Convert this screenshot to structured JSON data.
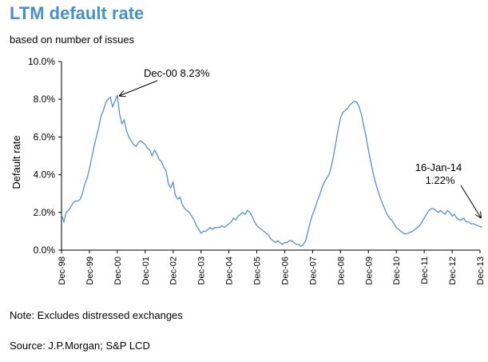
{
  "header": {
    "title": "LTM default rate",
    "subtitle": "based on number of issues"
  },
  "footer": {
    "note": "Note: Excludes distressed exchanges",
    "source": "Source: J.P.Morgan; S&P LCD"
  },
  "colors": {
    "title": "#4a90c8",
    "line": "#5b8fc8",
    "axis": "#000000"
  },
  "chart_data": {
    "type": "line",
    "title": "LTM default rate",
    "subtitle": "based on number of issues",
    "ylabel": "Default rate",
    "xlabel": "",
    "ylim": [
      0,
      10
    ],
    "y_ticks": [
      0,
      2,
      4,
      6,
      8,
      10
    ],
    "y_tick_labels": [
      "0.0%",
      "2.0%",
      "4.0%",
      "6.0%",
      "8.0%",
      "10.0%"
    ],
    "x_tick_labels": [
      "Dec-98",
      "Dec-99",
      "Dec-00",
      "Dec-01",
      "Dec-02",
      "Dec-03",
      "Dec-04",
      "Dec-05",
      "Dec-06",
      "Dec-07",
      "Dec-08",
      "Dec-09",
      "Dec-10",
      "Dec-11",
      "Dec-12",
      "Dec-13"
    ],
    "grid": false,
    "legend": "none",
    "series": [
      {
        "values": [
          [
            "1998-12",
            1.9
          ],
          [
            "1999-01",
            1.5
          ],
          [
            "1999-02",
            2.0
          ],
          [
            "1999-03",
            2.1
          ],
          [
            "1999-04",
            2.3
          ],
          [
            "1999-05",
            2.5
          ],
          [
            "1999-06",
            2.6
          ],
          [
            "1999-07",
            2.6
          ],
          [
            "1999-08",
            2.7
          ],
          [
            "1999-09",
            3.0
          ],
          [
            "1999-10",
            3.5
          ],
          [
            "1999-11",
            3.8
          ],
          [
            "1999-12",
            4.3
          ],
          [
            "2000-01",
            4.9
          ],
          [
            "2000-02",
            5.5
          ],
          [
            "2000-03",
            6.0
          ],
          [
            "2000-04",
            6.5
          ],
          [
            "2000-05",
            7.1
          ],
          [
            "2000-06",
            7.4
          ],
          [
            "2000-07",
            7.8
          ],
          [
            "2000-08",
            8.0
          ],
          [
            "2000-09",
            8.1
          ],
          [
            "2000-10",
            7.6
          ],
          [
            "2000-11",
            7.9
          ],
          [
            "2000-12",
            8.23
          ],
          [
            "2001-01",
            7.2
          ],
          [
            "2001-02",
            6.7
          ],
          [
            "2001-03",
            6.9
          ],
          [
            "2001-04",
            6.3
          ],
          [
            "2001-05",
            6.0
          ],
          [
            "2001-06",
            5.8
          ],
          [
            "2001-07",
            5.6
          ],
          [
            "2001-08",
            5.5
          ],
          [
            "2001-09",
            5.7
          ],
          [
            "2001-10",
            5.8
          ],
          [
            "2001-11",
            5.7
          ],
          [
            "2001-12",
            5.6
          ],
          [
            "2002-01",
            5.4
          ],
          [
            "2002-02",
            5.3
          ],
          [
            "2002-03",
            5.0
          ],
          [
            "2002-04",
            5.3
          ],
          [
            "2002-05",
            5.1
          ],
          [
            "2002-06",
            4.8
          ],
          [
            "2002-07",
            4.7
          ],
          [
            "2002-08",
            4.4
          ],
          [
            "2002-09",
            4.2
          ],
          [
            "2002-10",
            3.5
          ],
          [
            "2002-11",
            3.3
          ],
          [
            "2002-12",
            3.6
          ],
          [
            "2003-01",
            2.9
          ],
          [
            "2003-02",
            2.7
          ],
          [
            "2003-03",
            2.8
          ],
          [
            "2003-04",
            2.4
          ],
          [
            "2003-05",
            2.2
          ],
          [
            "2003-06",
            2.1
          ],
          [
            "2003-07",
            2.0
          ],
          [
            "2003-08",
            1.8
          ],
          [
            "2003-09",
            1.6
          ],
          [
            "2003-10",
            1.3
          ],
          [
            "2003-11",
            1.1
          ],
          [
            "2003-12",
            0.9
          ],
          [
            "2004-01",
            1.0
          ],
          [
            "2004-02",
            1.0
          ],
          [
            "2004-03",
            1.1
          ],
          [
            "2004-04",
            1.2
          ],
          [
            "2004-05",
            1.1
          ],
          [
            "2004-06",
            1.2
          ],
          [
            "2004-07",
            1.2
          ],
          [
            "2004-08",
            1.2
          ],
          [
            "2004-09",
            1.3
          ],
          [
            "2004-10",
            1.2
          ],
          [
            "2004-11",
            1.3
          ],
          [
            "2004-12",
            1.4
          ],
          [
            "2005-01",
            1.5
          ],
          [
            "2005-02",
            1.7
          ],
          [
            "2005-03",
            1.6
          ],
          [
            "2005-04",
            1.8
          ],
          [
            "2005-05",
            1.9
          ],
          [
            "2005-06",
            2.0
          ],
          [
            "2005-07",
            1.9
          ],
          [
            "2005-08",
            2.1
          ],
          [
            "2005-09",
            2.0
          ],
          [
            "2005-10",
            1.8
          ],
          [
            "2005-11",
            1.5
          ],
          [
            "2005-12",
            1.3
          ],
          [
            "2006-01",
            1.2
          ],
          [
            "2006-02",
            1.1
          ],
          [
            "2006-03",
            1.0
          ],
          [
            "2006-04",
            0.9
          ],
          [
            "2006-05",
            0.8
          ],
          [
            "2006-06",
            0.6
          ],
          [
            "2006-07",
            0.5
          ],
          [
            "2006-08",
            0.4
          ],
          [
            "2006-09",
            0.5
          ],
          [
            "2006-10",
            0.4
          ],
          [
            "2006-11",
            0.3
          ],
          [
            "2006-12",
            0.4
          ],
          [
            "2007-01",
            0.4
          ],
          [
            "2007-02",
            0.5
          ],
          [
            "2007-03",
            0.5
          ],
          [
            "2007-04",
            0.4
          ],
          [
            "2007-05",
            0.3
          ],
          [
            "2007-06",
            0.3
          ],
          [
            "2007-07",
            0.2
          ],
          [
            "2007-08",
            0.3
          ],
          [
            "2007-09",
            0.5
          ],
          [
            "2007-10",
            1.0
          ],
          [
            "2007-11",
            1.5
          ],
          [
            "2007-12",
            1.9
          ],
          [
            "2008-01",
            2.2
          ],
          [
            "2008-02",
            2.6
          ],
          [
            "2008-03",
            2.9
          ],
          [
            "2008-04",
            3.3
          ],
          [
            "2008-05",
            3.6
          ],
          [
            "2008-06",
            3.8
          ],
          [
            "2008-07",
            4.0
          ],
          [
            "2008-08",
            4.4
          ],
          [
            "2008-09",
            5.0
          ],
          [
            "2008-10",
            5.7
          ],
          [
            "2008-11",
            6.4
          ],
          [
            "2008-12",
            7.0
          ],
          [
            "2009-01",
            7.3
          ],
          [
            "2009-02",
            7.4
          ],
          [
            "2009-03",
            7.5
          ],
          [
            "2009-04",
            7.7
          ],
          [
            "2009-05",
            7.8
          ],
          [
            "2009-06",
            7.9
          ],
          [
            "2009-07",
            7.85
          ],
          [
            "2009-08",
            7.6
          ],
          [
            "2009-09",
            7.2
          ],
          [
            "2009-10",
            6.6
          ],
          [
            "2009-11",
            6.0
          ],
          [
            "2009-12",
            5.3
          ],
          [
            "2010-01",
            4.7
          ],
          [
            "2010-02",
            4.1
          ],
          [
            "2010-03",
            3.6
          ],
          [
            "2010-04",
            3.2
          ],
          [
            "2010-05",
            2.8
          ],
          [
            "2010-06",
            2.5
          ],
          [
            "2010-07",
            2.2
          ],
          [
            "2010-08",
            1.9
          ],
          [
            "2010-09",
            1.7
          ],
          [
            "2010-10",
            1.6
          ],
          [
            "2010-11",
            1.4
          ],
          [
            "2010-12",
            1.2
          ],
          [
            "2011-01",
            1.1
          ],
          [
            "2011-02",
            1.0
          ],
          [
            "2011-03",
            0.9
          ],
          [
            "2011-04",
            0.85
          ],
          [
            "2011-05",
            0.9
          ],
          [
            "2011-06",
            0.95
          ],
          [
            "2011-07",
            1.0
          ],
          [
            "2011-08",
            1.1
          ],
          [
            "2011-09",
            1.2
          ],
          [
            "2011-10",
            1.3
          ],
          [
            "2011-11",
            1.5
          ],
          [
            "2011-12",
            1.7
          ],
          [
            "2012-01",
            1.9
          ],
          [
            "2012-02",
            2.1
          ],
          [
            "2012-03",
            2.2
          ],
          [
            "2012-04",
            2.2
          ],
          [
            "2012-05",
            2.1
          ],
          [
            "2012-06",
            2.0
          ],
          [
            "2012-07",
            2.1
          ],
          [
            "2012-08",
            2.0
          ],
          [
            "2012-09",
            1.9
          ],
          [
            "2012-10",
            2.1
          ],
          [
            "2012-11",
            2.0
          ],
          [
            "2012-12",
            1.8
          ],
          [
            "2013-01",
            1.9
          ],
          [
            "2013-02",
            1.7
          ],
          [
            "2013-03",
            1.6
          ],
          [
            "2013-04",
            1.6
          ],
          [
            "2013-05",
            1.7
          ],
          [
            "2013-06",
            1.5
          ],
          [
            "2013-07",
            1.5
          ],
          [
            "2013-08",
            1.4
          ],
          [
            "2013-09",
            1.4
          ],
          [
            "2013-10",
            1.35
          ],
          [
            "2013-11",
            1.3
          ],
          [
            "2013-12",
            1.25
          ],
          [
            "2014-01",
            1.22
          ]
        ]
      }
    ],
    "annotations": [
      {
        "text": "Dec-00 8.23%",
        "x": "2000-12",
        "y": 8.23
      },
      {
        "text_line1": "16-Jan-14",
        "text_line2": "1.22%",
        "x": "2014-01",
        "y": 1.22
      }
    ]
  }
}
